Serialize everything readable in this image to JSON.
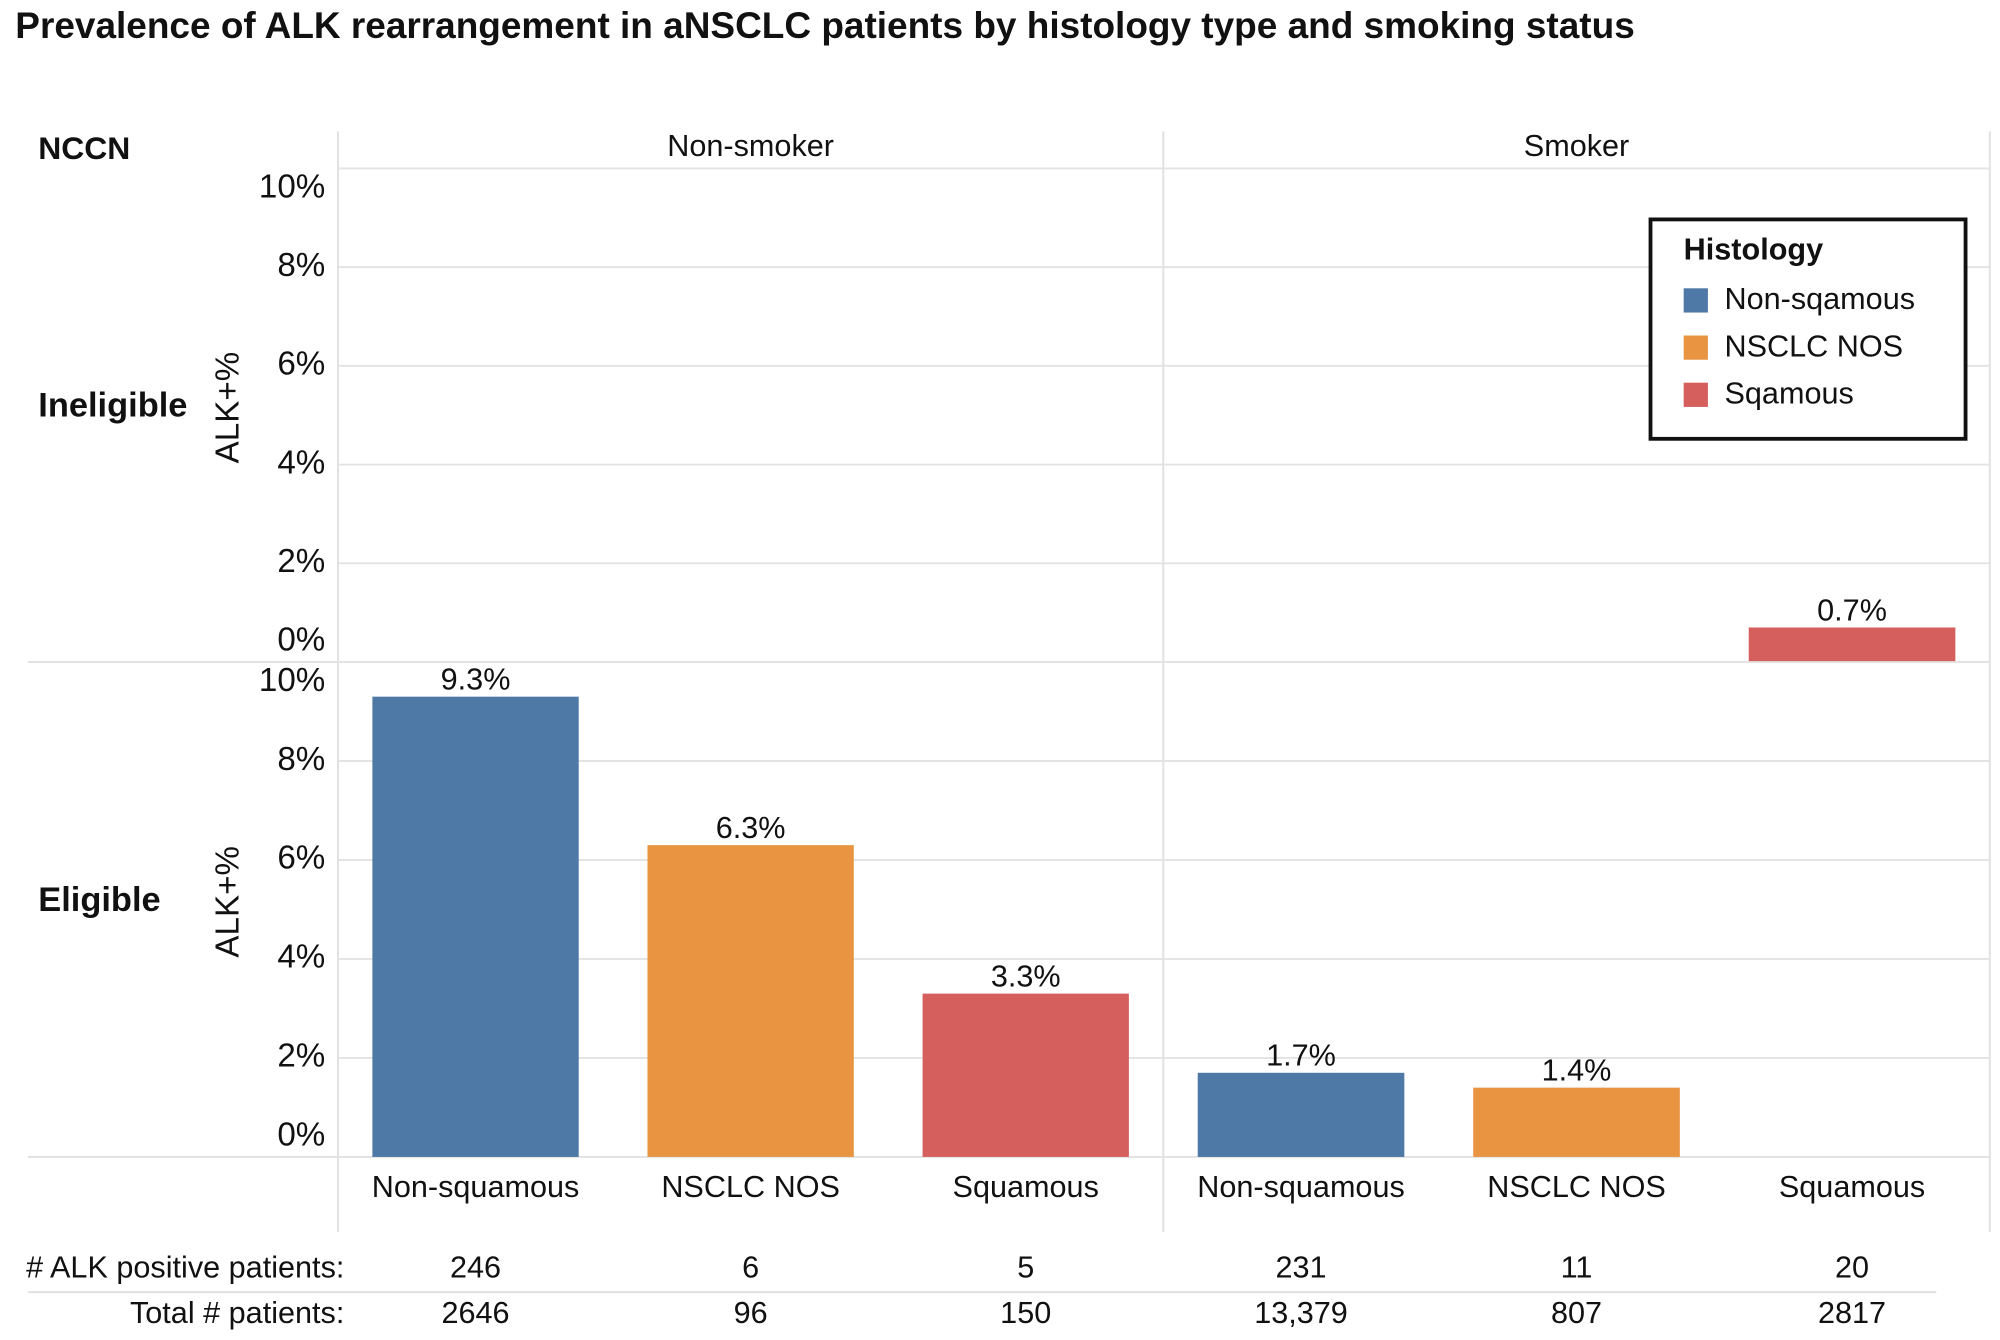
{
  "chart_data": {
    "type": "bar",
    "title": "Prevalence of ALK rearrangement in aNSCLC patients by histology type and smoking status",
    "y_label": "ALK+%",
    "row_facet_title": "NCCN",
    "facet_columns": [
      {
        "name": "Non-smoker",
        "categories": [
          "Non-squamous",
          "NSCLC NOS",
          "Squamous"
        ]
      },
      {
        "name": "Smoker",
        "categories": [
          "Non-squamous",
          "NSCLC NOS",
          "Squamous"
        ]
      }
    ],
    "facet_rows": [
      {
        "name": "Ineligible",
        "values": [
          [
            null,
            null,
            null
          ],
          [
            null,
            null,
            0.7
          ]
        ],
        "value_labels": [
          [
            null,
            null,
            null
          ],
          [
            null,
            null,
            "0.7%"
          ]
        ]
      },
      {
        "name": "Eligible",
        "values": [
          [
            9.3,
            6.3,
            3.3
          ],
          [
            1.7,
            1.4,
            null
          ]
        ],
        "value_labels": [
          [
            "9.3%",
            "6.3%",
            "3.3%"
          ],
          [
            "1.7%",
            "1.4%",
            null
          ]
        ]
      }
    ],
    "ylim": [
      0,
      10
    ],
    "yticks": [
      {
        "value": 0,
        "label": "0%"
      },
      {
        "value": 2,
        "label": "2%"
      },
      {
        "value": 4,
        "label": "4%"
      },
      {
        "value": 6,
        "label": "6%"
      },
      {
        "value": 8,
        "label": "8%"
      },
      {
        "value": 10,
        "label": "10%"
      }
    ],
    "grid": true,
    "legend_title": "Histology",
    "legend_position": "top-right",
    "series": [
      {
        "name": "Non-sqamous",
        "color": "#4e78a6"
      },
      {
        "name": "NSCLC NOS",
        "color": "#e89441"
      },
      {
        "name": "Sqamous",
        "color": "#d45f5c"
      }
    ],
    "table": [
      {
        "label": "# ALK positive patients:",
        "cells": [
          [
            "246",
            "6",
            "5"
          ],
          [
            "231",
            "11",
            "20"
          ]
        ]
      },
      {
        "label": "Total # patients:",
        "cells": [
          [
            "2646",
            "96",
            "150"
          ],
          [
            "13,379",
            "807",
            "2817"
          ]
        ]
      }
    ]
  }
}
